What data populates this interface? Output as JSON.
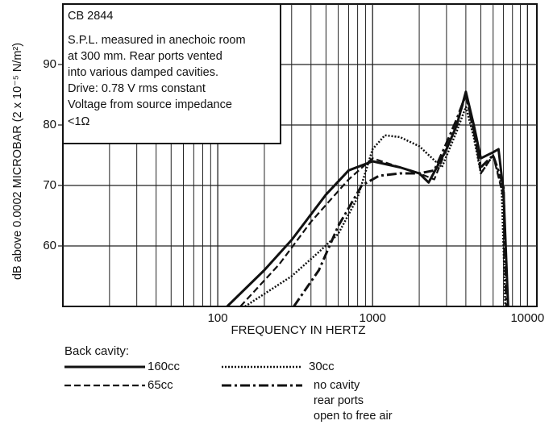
{
  "chart_data": {
    "type": "line",
    "xlabel": "FREQUENCY IN HERTZ",
    "ylabel": "dB above 0.0002 MICROBAR (2 x 10⁻⁵ N/m²)",
    "annotations": [
      "CB 2844",
      "S.P.L. measured in anechoic room",
      "at 300 mm. Rear ports vented",
      "into various damped cavities.",
      "Drive: 0.78 V rms constant",
      "Voltage from source impedance",
      "<1Ω"
    ],
    "legend_title": "Back cavity:",
    "xscale": "log",
    "xlim": [
      10,
      11500
    ],
    "ylim": [
      50,
      100
    ],
    "xticks": [
      100,
      1000,
      10000
    ],
    "yticks": [
      60,
      70,
      80,
      90
    ],
    "grid": true,
    "series": [
      {
        "name": "160cc",
        "color": "#111111",
        "linestyle": "solid",
        "x": [
          115,
          200,
          300,
          500,
          700,
          1000,
          1500,
          2000,
          2300,
          2600,
          3000,
          3500,
          4000,
          4500,
          5000,
          6000,
          6500,
          7000,
          7500
        ],
        "values": [
          50,
          56,
          61,
          68.5,
          72.5,
          74,
          73,
          72,
          70.5,
          73,
          76,
          80,
          85.5,
          80,
          74.5,
          75.5,
          76,
          69,
          50
        ]
      },
      {
        "name": "30cc",
        "color": "#111111",
        "linestyle": "dotted",
        "x": [
          150,
          300,
          450,
          600,
          800,
          1000,
          1200,
          1500,
          2000,
          2800,
          3500,
          4000,
          4500,
          5000,
          6000,
          6800,
          7200
        ],
        "values": [
          50,
          55,
          59,
          62,
          68,
          76,
          78.3,
          78,
          76.5,
          73,
          79,
          83,
          78,
          72,
          75,
          70,
          50
        ]
      },
      {
        "name": "65cc",
        "color": "#111111",
        "linestyle": "dashed",
        "x": [
          140,
          250,
          400,
          700,
          1000,
          1500,
          2000,
          2500,
          3000,
          3500,
          4000,
          4500,
          5000,
          6000,
          7000,
          7500
        ],
        "values": [
          50,
          57,
          64,
          71,
          74.5,
          73,
          72,
          71,
          76,
          80,
          85,
          79,
          72,
          75,
          68,
          50
        ]
      },
      {
        "name": "no cavity\nrear ports\nopen to free air",
        "color": "#111111",
        "linestyle": "dashdot",
        "x": [
          310,
          450,
          600,
          850,
          1100,
          1500,
          2000,
          2500,
          3000,
          3500,
          4000,
          4500,
          5000,
          6000,
          7000,
          7300
        ],
        "values": [
          50,
          56,
          63.3,
          70,
          71.6,
          72,
          72,
          72.5,
          77,
          81,
          85,
          79,
          73,
          75,
          70,
          50
        ]
      }
    ]
  }
}
